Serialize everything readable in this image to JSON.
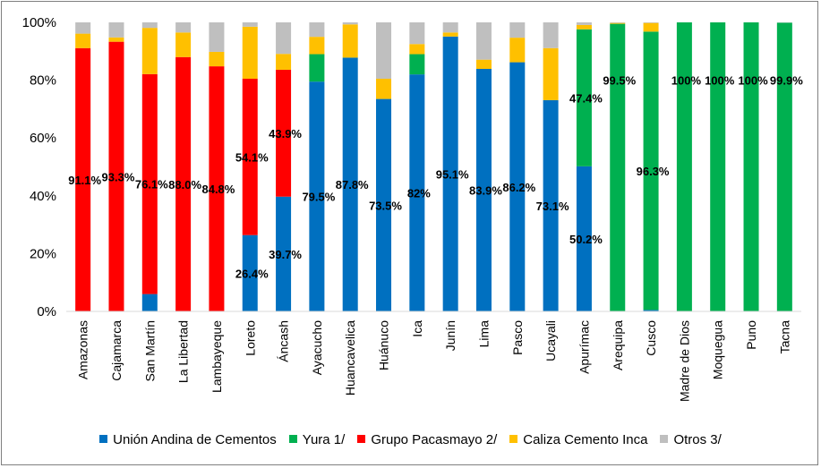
{
  "chart_data": {
    "type": "bar",
    "stacked": true,
    "title": "",
    "xlabel": "",
    "ylabel": "",
    "ylim": [
      0,
      100
    ],
    "yticks": [
      "0%",
      "20%",
      "40%",
      "60%",
      "80%",
      "100%"
    ],
    "yticks_values": [
      0,
      20,
      40,
      60,
      80,
      100
    ],
    "grid": false,
    "legend_position": "bottom",
    "categories": [
      "Amazonas",
      "Cajamarca",
      "San Martín",
      "La Libertad",
      "Lambayeque",
      "Loreto",
      "Áncash",
      "Ayacucho",
      "Huancavelica",
      "Huánuco",
      "Ica",
      "Junín",
      "Lima",
      "Pasco",
      "Ucayali",
      "Apurímac",
      "Arequipa",
      "Cusco",
      "Madre de Dios",
      "Moquegua",
      "Puno",
      "Tacna"
    ],
    "series": [
      {
        "name": "Unión Andina de Cementos",
        "color": "#0070C0",
        "values": [
          0,
          0,
          6,
          0,
          0,
          26.4,
          39.7,
          79.5,
          87.8,
          73.5,
          82,
          95.1,
          83.9,
          86.2,
          73.1,
          50.2,
          0,
          0.5,
          0,
          0,
          0,
          0
        ]
      },
      {
        "name": "Yura 1/",
        "color": "#00B050",
        "values": [
          0,
          0,
          0,
          0,
          0,
          0,
          0,
          9.5,
          0,
          0,
          7,
          0,
          0,
          0,
          0,
          47.4,
          99.5,
          96.3,
          100,
          100,
          100,
          99.9
        ]
      },
      {
        "name": "Grupo Pacasmayo 2/",
        "color": "#FF0000",
        "values": [
          91.1,
          93.3,
          76.1,
          88.0,
          84.8,
          54.1,
          43.9,
          0,
          0,
          0,
          0,
          0,
          0,
          0,
          0,
          0,
          0,
          0,
          0,
          0,
          0,
          0
        ]
      },
      {
        "name": "Caliza Cemento Inca",
        "color": "#FFC000",
        "values": [
          5,
          1.5,
          16,
          8.5,
          5,
          18,
          5.5,
          6,
          11.5,
          7,
          3.5,
          1.4,
          3.2,
          8.5,
          18,
          1.5,
          0.3,
          3,
          0,
          0,
          0,
          0
        ]
      },
      {
        "name": "Otros 3/",
        "color": "#BFBFBF",
        "values": [
          3.9,
          5.2,
          1.9,
          3.5,
          10.2,
          1.5,
          10.9,
          5,
          0.7,
          19.5,
          7.5,
          3.5,
          12.9,
          5.3,
          8.9,
          0.9,
          0.2,
          0.2,
          0,
          0,
          0,
          0.1
        ]
      }
    ],
    "data_labels": [
      {
        "category": "Amazonas",
        "text": "91.1%"
      },
      {
        "category": "Cajamarca",
        "text": "93.3%"
      },
      {
        "category": "San Martín",
        "text": "76.1%"
      },
      {
        "category": "La Libertad",
        "text": "88.0%"
      },
      {
        "category": "Lambayeque",
        "text": "84.8%"
      },
      {
        "category": "Loreto",
        "text": "54.1%"
      },
      {
        "category": "Loreto",
        "text": "26.4%"
      },
      {
        "category": "Áncash",
        "text": "43.9%"
      },
      {
        "category": "Áncash",
        "text": "39.7%"
      },
      {
        "category": "Ayacucho",
        "text": "79.5%"
      },
      {
        "category": "Huancavelica",
        "text": "87.8%"
      },
      {
        "category": "Huánuco",
        "text": "73.5%"
      },
      {
        "category": "Ica",
        "text": "82%"
      },
      {
        "category": "Junín",
        "text": "95.1%"
      },
      {
        "category": "Lima",
        "text": "83.9%"
      },
      {
        "category": "Pasco",
        "text": "86.2%"
      },
      {
        "category": "Ucayali",
        "text": "73.1%"
      },
      {
        "category": "Apurímac",
        "text": "47.4%"
      },
      {
        "category": "Apurímac",
        "text": "50.2%"
      },
      {
        "category": "Arequipa",
        "text": "99.5%"
      },
      {
        "category": "Cusco",
        "text": "96.3%"
      },
      {
        "category": "Madre de Dios",
        "text": "100%"
      },
      {
        "category": "Moquegua",
        "text": "100%"
      },
      {
        "category": "Puno",
        "text": "100%"
      },
      {
        "category": "Tacna",
        "text": "99.9%"
      }
    ]
  }
}
